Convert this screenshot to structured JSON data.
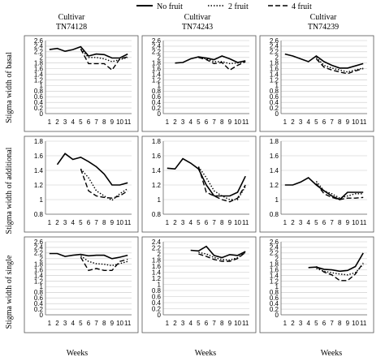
{
  "legend": {
    "entries": [
      {
        "label": "No fruit",
        "style": "solid"
      },
      {
        "label": "2 fruit",
        "style": "dotted"
      },
      {
        "label": "4 fruit",
        "style": "dashed"
      }
    ]
  },
  "column_titles": [
    {
      "line1": "Cultivar",
      "line2": "TN74128"
    },
    {
      "line1": "Cultivar",
      "line2": "TN74243"
    },
    {
      "line1": "Cultivar",
      "line2": "TN74239"
    }
  ],
  "row_labels": [
    "Stigma width of basal",
    "Stigma width of additional",
    "Stigma width of single"
  ],
  "xlabel": "Weeks",
  "chart_data": [
    {
      "type": "line",
      "row": 0,
      "col": 0,
      "ylim": [
        0,
        2.6
      ],
      "yticks": [
        0,
        0.2,
        0.4,
        0.6,
        0.8,
        1,
        1.2,
        1.4,
        1.6,
        1.8,
        2,
        2.2,
        2.4,
        2.6
      ],
      "x": [
        1,
        2,
        3,
        4,
        5,
        6,
        7,
        8,
        9,
        10,
        11
      ],
      "grid": true,
      "series": [
        {
          "name": "No fruit",
          "style": "solid",
          "x": [
            1,
            2,
            3,
            4,
            5,
            6,
            7,
            8,
            9,
            10,
            11
          ],
          "y": [
            2.28,
            2.32,
            2.22,
            2.28,
            2.38,
            2.05,
            2.12,
            2.1,
            1.98,
            1.98,
            2.12
          ]
        },
        {
          "name": "2 fruit",
          "style": "dotted",
          "x": [
            5,
            6,
            7,
            8,
            9,
            10,
            11
          ],
          "y": [
            2.3,
            2.0,
            2.0,
            1.95,
            1.85,
            1.92,
            2.0
          ]
        },
        {
          "name": "4 fruit",
          "style": "dashed",
          "x": [
            5,
            6,
            7,
            8,
            9,
            10,
            11
          ],
          "y": [
            2.3,
            1.78,
            1.78,
            1.78,
            1.55,
            1.95,
            2.02
          ]
        }
      ]
    },
    {
      "type": "line",
      "row": 0,
      "col": 1,
      "ylim": [
        0,
        2.6
      ],
      "yticks": [
        0,
        0.2,
        0.4,
        0.6,
        0.8,
        1,
        1.2,
        1.4,
        1.6,
        1.8,
        2,
        2.2,
        2.4,
        2.6
      ],
      "x": [
        1,
        2,
        3,
        4,
        5,
        6,
        7,
        8,
        9,
        10,
        11
      ],
      "grid": true,
      "series": [
        {
          "name": "No fruit",
          "style": "solid",
          "x": [
            2,
            3,
            4,
            5,
            6,
            7,
            8,
            9,
            10,
            11
          ],
          "y": [
            1.8,
            1.82,
            1.95,
            2.02,
            1.98,
            1.92,
            2.05,
            1.95,
            1.82,
            1.88
          ]
        },
        {
          "name": "2 fruit",
          "style": "dotted",
          "x": [
            5,
            6,
            7,
            8,
            9,
            10,
            11
          ],
          "y": [
            2.0,
            1.95,
            1.85,
            1.85,
            1.78,
            1.8,
            1.85
          ]
        },
        {
          "name": "4 fruit",
          "style": "dashed",
          "x": [
            5,
            6,
            7,
            8,
            9,
            10,
            11
          ],
          "y": [
            2.0,
            1.92,
            1.78,
            1.82,
            1.55,
            1.72,
            1.85
          ]
        }
      ]
    },
    {
      "type": "line",
      "row": 0,
      "col": 2,
      "ylim": [
        0,
        2.6
      ],
      "yticks": [
        0,
        0.2,
        0.4,
        0.6,
        0.8,
        1,
        1.2,
        1.4,
        1.6,
        1.8,
        2,
        2.2,
        2.4,
        2.6
      ],
      "x": [
        1,
        2,
        3,
        4,
        5,
        6,
        7,
        8,
        9,
        10,
        11
      ],
      "grid": true,
      "series": [
        {
          "name": "No fruit",
          "style": "solid",
          "x": [
            1,
            2,
            3,
            4,
            5,
            6,
            7,
            8,
            9,
            10,
            11
          ],
          "y": [
            2.12,
            2.05,
            1.95,
            1.85,
            2.05,
            1.85,
            1.72,
            1.62,
            1.62,
            1.7,
            1.78
          ]
        },
        {
          "name": "2 fruit",
          "style": "dotted",
          "x": [
            5,
            6,
            7,
            8,
            9,
            10,
            11
          ],
          "y": [
            2.0,
            1.72,
            1.62,
            1.55,
            1.48,
            1.55,
            1.62
          ]
        },
        {
          "name": "4 fruit",
          "style": "dashed",
          "x": [
            5,
            6,
            7,
            8,
            9,
            10,
            11
          ],
          "y": [
            1.95,
            1.65,
            1.55,
            1.48,
            1.42,
            1.52,
            1.6
          ]
        }
      ]
    },
    {
      "type": "line",
      "row": 1,
      "col": 0,
      "ylim": [
        0.8,
        1.8
      ],
      "yticks": [
        0.8,
        1,
        1.2,
        1.4,
        1.6,
        1.8
      ],
      "x": [
        1,
        2,
        3,
        4,
        5,
        6,
        7,
        8,
        9,
        10,
        11
      ],
      "grid": true,
      "series": [
        {
          "name": "No fruit",
          "style": "solid",
          "x": [
            2,
            3,
            4,
            5,
            6,
            7,
            8,
            9,
            10,
            11
          ],
          "y": [
            1.48,
            1.63,
            1.55,
            1.58,
            1.52,
            1.45,
            1.35,
            1.2,
            1.2,
            1.23
          ]
        },
        {
          "name": "2 fruit",
          "style": "dotted",
          "x": [
            5,
            6,
            7,
            8,
            9,
            10,
            11
          ],
          "y": [
            1.42,
            1.3,
            1.12,
            1.05,
            0.99,
            1.08,
            1.15
          ]
        },
        {
          "name": "4 fruit",
          "style": "dashed",
          "x": [
            5,
            6,
            7,
            8,
            9,
            10,
            11
          ],
          "y": [
            1.42,
            1.12,
            1.05,
            1.03,
            1.02,
            1.05,
            1.12
          ]
        }
      ]
    },
    {
      "type": "line",
      "row": 1,
      "col": 1,
      "ylim": [
        0.8,
        1.8
      ],
      "yticks": [
        0.8,
        1,
        1.2,
        1.4,
        1.6,
        1.8
      ],
      "x": [
        1,
        2,
        3,
        4,
        5,
        6,
        7,
        8,
        9,
        10,
        11
      ],
      "grid": true,
      "series": [
        {
          "name": "No fruit",
          "style": "solid",
          "x": [
            1,
            2,
            3,
            4,
            5,
            6,
            7,
            8,
            9,
            10,
            11
          ],
          "y": [
            1.43,
            1.42,
            1.56,
            1.5,
            1.42,
            1.2,
            1.05,
            1.05,
            1.05,
            1.1,
            1.32
          ]
        },
        {
          "name": "2 fruit",
          "style": "dotted",
          "x": [
            5,
            6,
            7,
            8,
            9,
            10,
            11
          ],
          "y": [
            1.45,
            1.3,
            1.12,
            1.05,
            1.0,
            1.0,
            1.18
          ]
        },
        {
          "name": "4 fruit",
          "style": "dashed",
          "x": [
            5,
            6,
            7,
            8,
            9,
            10,
            11
          ],
          "y": [
            1.45,
            1.1,
            1.05,
            1.0,
            0.97,
            1.02,
            1.2
          ]
        }
      ]
    },
    {
      "type": "line",
      "row": 1,
      "col": 2,
      "ylim": [
        0.8,
        1.8
      ],
      "yticks": [
        0.8,
        1,
        1.2,
        1.4,
        1.6,
        1.8
      ],
      "x": [
        1,
        2,
        3,
        4,
        5,
        6,
        7,
        8,
        9,
        10,
        11
      ],
      "grid": true,
      "series": [
        {
          "name": "No fruit",
          "style": "solid",
          "x": [
            1,
            2,
            3,
            4,
            5,
            6,
            7,
            8,
            9,
            10,
            11
          ],
          "y": [
            1.2,
            1.2,
            1.24,
            1.3,
            1.2,
            1.12,
            1.05,
            1.0,
            1.1,
            1.1,
            1.1
          ]
        },
        {
          "name": "2 fruit",
          "style": "dotted",
          "x": [
            5,
            6,
            7,
            8,
            9,
            10,
            11
          ],
          "y": [
            1.25,
            1.12,
            1.08,
            1.02,
            1.05,
            1.08,
            1.08
          ]
        },
        {
          "name": "4 fruit",
          "style": "dashed",
          "x": [
            5,
            6,
            7,
            8,
            9,
            10,
            11
          ],
          "y": [
            1.22,
            1.08,
            1.03,
            1.0,
            1.02,
            1.02,
            1.03
          ]
        }
      ]
    },
    {
      "type": "line",
      "row": 2,
      "col": 0,
      "ylim": [
        0,
        2.6
      ],
      "yticks": [
        0,
        0.2,
        0.4,
        0.6,
        0.8,
        1,
        1.2,
        1.4,
        1.6,
        1.8,
        2,
        2.2,
        2.4,
        2.6
      ],
      "x": [
        1,
        2,
        3,
        4,
        5,
        6,
        7,
        8,
        9,
        10,
        11
      ],
      "grid": true,
      "series": [
        {
          "name": "No fruit",
          "style": "solid",
          "x": [
            1,
            2,
            3,
            4,
            5,
            6,
            7,
            8,
            9,
            10,
            11
          ],
          "y": [
            2.18,
            2.18,
            2.08,
            2.12,
            2.15,
            2.1,
            2.12,
            2.12,
            2.0,
            2.05,
            2.12
          ]
        },
        {
          "name": "2 fruit",
          "style": "dotted",
          "x": [
            5,
            6,
            7,
            8,
            9,
            10,
            11
          ],
          "y": [
            2.1,
            1.9,
            1.82,
            1.8,
            1.75,
            1.82,
            1.9
          ]
        },
        {
          "name": "4 fruit",
          "style": "dashed",
          "x": [
            5,
            6,
            7,
            8,
            9,
            10,
            11
          ],
          "y": [
            2.05,
            1.58,
            1.65,
            1.58,
            1.58,
            1.9,
            1.98
          ]
        }
      ]
    },
    {
      "type": "line",
      "row": 2,
      "col": 1,
      "ylim": [
        0,
        2.4
      ],
      "yticks": [
        0,
        0.2,
        0.4,
        0.6,
        0.8,
        1,
        1.2,
        1.4,
        1.6,
        1.8,
        2,
        2.2,
        2.4
      ],
      "x": [
        1,
        2,
        3,
        4,
        5,
        6,
        7,
        8,
        9,
        10,
        11
      ],
      "grid": true,
      "series": [
        {
          "name": "No fruit",
          "style": "solid",
          "x": [
            4,
            5,
            6,
            7,
            8,
            9,
            10,
            11
          ],
          "y": [
            2.12,
            2.1,
            2.25,
            1.95,
            1.88,
            1.98,
            1.95,
            2.08
          ]
        },
        {
          "name": "2 fruit",
          "style": "dotted",
          "x": [
            5,
            6,
            7,
            8,
            9,
            10,
            11
          ],
          "y": [
            2.05,
            2.0,
            1.88,
            1.82,
            1.8,
            1.88,
            2.05
          ]
        },
        {
          "name": "4 fruit",
          "style": "dashed",
          "x": [
            5,
            6,
            7,
            8,
            9,
            10,
            11
          ],
          "y": [
            2.0,
            1.92,
            1.82,
            1.76,
            1.76,
            1.85,
            2.05
          ]
        }
      ]
    },
    {
      "type": "line",
      "row": 2,
      "col": 2,
      "ylim": [
        0,
        2.6
      ],
      "yticks": [
        0,
        0.2,
        0.4,
        0.6,
        0.8,
        1,
        1.2,
        1.4,
        1.6,
        1.8,
        2,
        2.2,
        2.4,
        2.6
      ],
      "x": [
        1,
        2,
        3,
        4,
        5,
        6,
        7,
        8,
        9,
        10,
        11
      ],
      "grid": true,
      "series": [
        {
          "name": "No fruit",
          "style": "solid",
          "x": [
            4,
            5,
            6,
            7,
            8,
            9,
            10,
            11
          ],
          "y": [
            1.68,
            1.7,
            1.62,
            1.6,
            1.55,
            1.58,
            1.72,
            2.2
          ]
        },
        {
          "name": "2 fruit",
          "style": "dotted",
          "x": [
            5,
            6,
            7,
            8,
            9,
            10,
            11
          ],
          "y": [
            1.65,
            1.55,
            1.5,
            1.45,
            1.42,
            1.5,
            1.8
          ]
        },
        {
          "name": "4 fruit",
          "style": "dashed",
          "x": [
            5,
            6,
            7,
            8,
            9,
            10,
            11
          ],
          "y": [
            1.72,
            1.52,
            1.42,
            1.22,
            1.22,
            1.45,
            1.85
          ]
        }
      ]
    }
  ]
}
